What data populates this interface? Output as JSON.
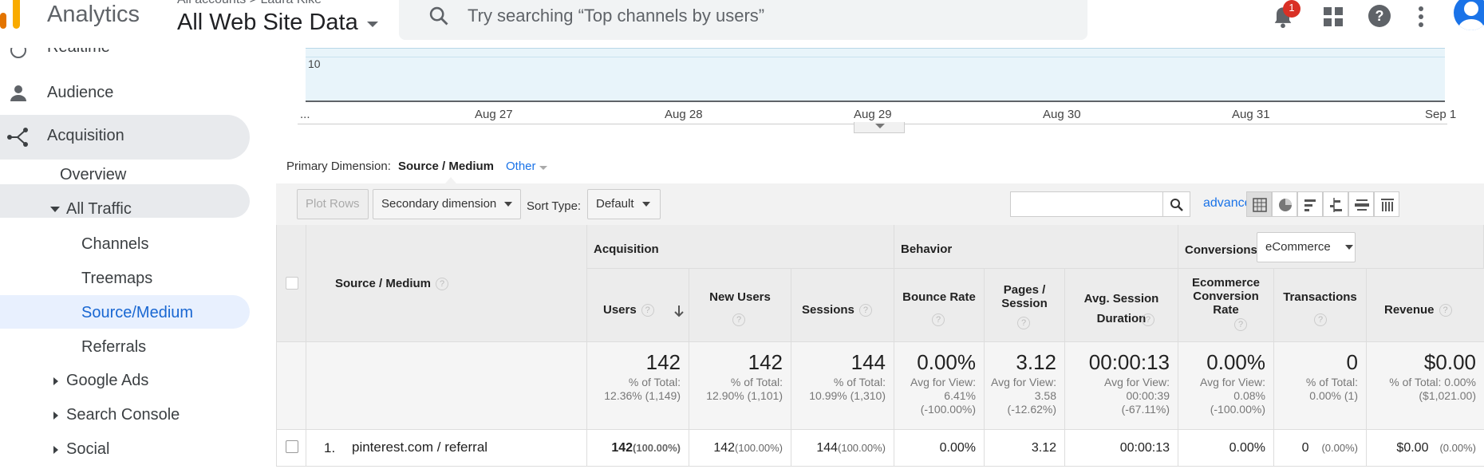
{
  "header": {
    "brand": "Analytics",
    "breadcrumb": "All accounts > Laura Kike",
    "account_view": "All Web Site Data",
    "search_placeholder": "Try searching “Top channels by users”",
    "notification_count": "1",
    "icons": [
      "search-icon",
      "bell-icon",
      "apps-icon",
      "help-icon",
      "more-vert-icon",
      "avatar"
    ]
  },
  "sidebar": {
    "items": [
      {
        "label": "Realtime"
      },
      {
        "label": "Audience"
      },
      {
        "label": "Acquisition"
      },
      {
        "label": "Overview"
      },
      {
        "label": "All Traffic"
      },
      {
        "label": "Channels"
      },
      {
        "label": "Treemaps"
      },
      {
        "label": "Source/Medium"
      },
      {
        "label": "Referrals"
      },
      {
        "label": "Google Ads"
      },
      {
        "label": "Search Console"
      },
      {
        "label": "Social"
      }
    ]
  },
  "chart": {
    "y_label": "10",
    "x_labels": [
      "...",
      "Aug 27",
      "Aug 28",
      "Aug 29",
      "Aug 30",
      "Aug 31",
      "Sep 1"
    ]
  },
  "dimension": {
    "label": "Primary Dimension:",
    "value": "Source / Medium",
    "other": "Other"
  },
  "toolbar": {
    "plot_rows": "Plot Rows",
    "secondary_dimension": "Secondary dimension",
    "sort_type_label": "Sort Type:",
    "sort_type_value": "Default",
    "advanced": "advanced"
  },
  "table": {
    "dimension_header": "Source / Medium",
    "groups": {
      "acquisition": "Acquisition",
      "behavior": "Behavior",
      "conversions": "Conversions",
      "conversions_select": "eCommerce"
    },
    "columns": [
      {
        "label": "Users",
        "total": "142",
        "sub": "% of Total: 12.36% (1,149)",
        "row": "142",
        "row_pct": "(100.00%)"
      },
      {
        "label": "New Users",
        "total": "142",
        "sub": "% of Total: 12.90% (1,101)",
        "row": "142",
        "row_pct": "(100.00%)"
      },
      {
        "label": "Sessions",
        "total": "144",
        "sub": "% of Total: 10.99% (1,310)",
        "row": "144",
        "row_pct": "(100.00%)"
      },
      {
        "label": "Bounce Rate",
        "total": "0.00%",
        "sub": "Avg for View: 6.41% (-100.00%)",
        "row": "0.00%",
        "row_pct": ""
      },
      {
        "label": "Pages / Session",
        "total": "3.12",
        "sub": "Avg for View: 3.58 (-12.62%)",
        "row": "3.12",
        "row_pct": ""
      },
      {
        "label": "Avg. Session Duration",
        "total": "00:00:13",
        "sub": "Avg for View: 00:00:39 (-67.11%)",
        "row": "00:00:13",
        "row_pct": ""
      },
      {
        "label": "Ecommerce Conversion Rate",
        "total": "0.00%",
        "sub": "Avg for View: 0.08% (-100.00%)",
        "row": "0.00%",
        "row_pct": ""
      },
      {
        "label": "Transactions",
        "total": "0",
        "sub": "% of Total: 0.00% (1)",
        "row": "0",
        "row_pct": "(0.00%)"
      },
      {
        "label": "Revenue",
        "total": "$0.00",
        "sub": "% of Total: 0.00% ($1,021.00)",
        "row": "$0.00",
        "row_pct": "(0.00%)"
      }
    ],
    "rows": [
      {
        "index": "1.",
        "source": "pinterest.com / referral"
      }
    ]
  }
}
